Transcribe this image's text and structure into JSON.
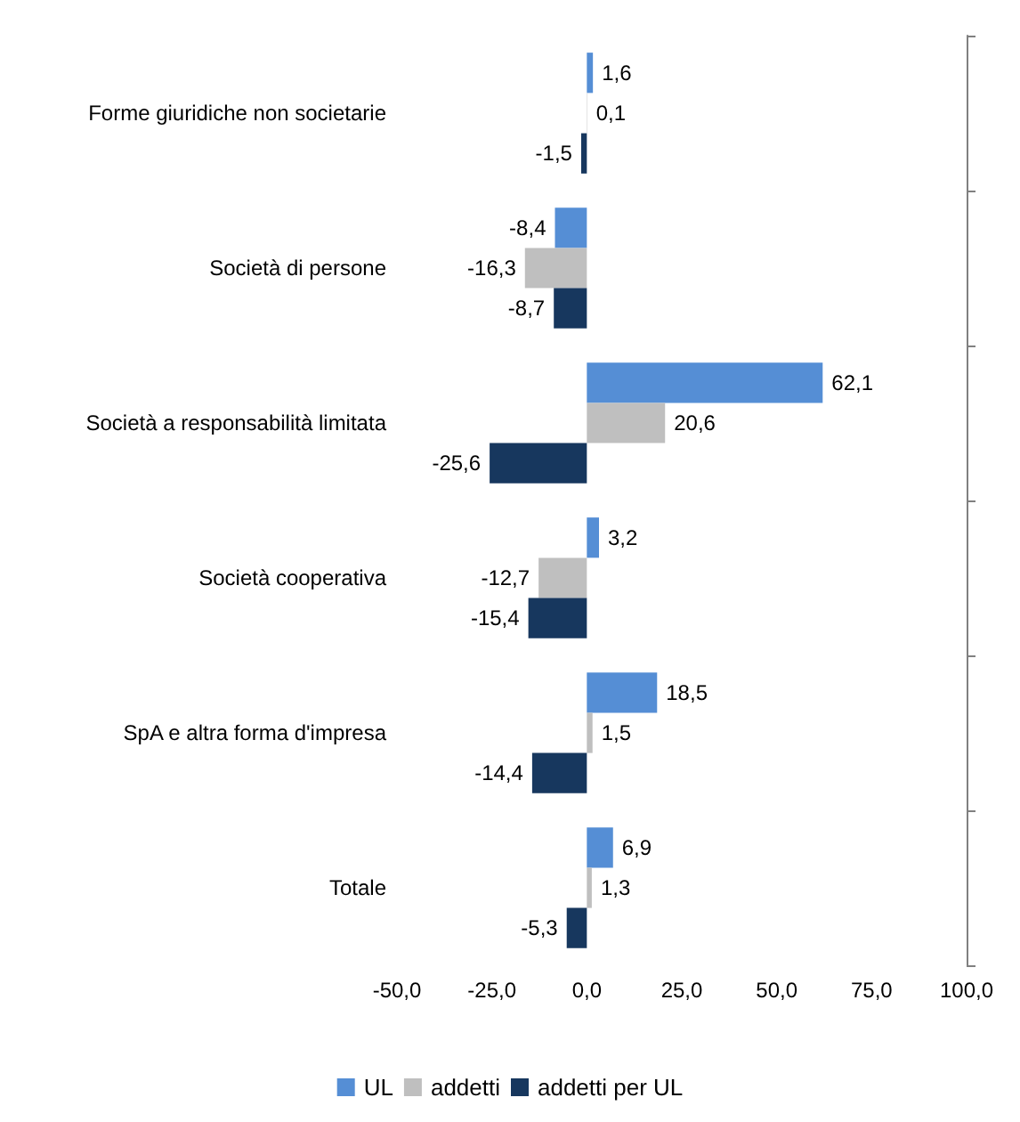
{
  "chart_data": {
    "type": "bar",
    "orientation": "horizontal",
    "categories": [
      "Forme giuridiche non societarie",
      "Società di persone",
      "Società a responsabilità limitata",
      "Società cooperativa",
      "SpA e altra forma d'impresa",
      "Totale"
    ],
    "series": [
      {
        "name": "UL",
        "color": "#558ed5",
        "values": [
          1.6,
          -8.4,
          62.1,
          3.2,
          18.5,
          6.9
        ],
        "value_labels": [
          "1,6",
          "-8,4",
          "62,1",
          "3,2",
          "18,5",
          "6,9"
        ]
      },
      {
        "name": "addetti",
        "color": "#bfbfbf",
        "values": [
          0.1,
          -16.3,
          20.6,
          -12.7,
          1.5,
          1.3
        ],
        "value_labels": [
          "0,1",
          "-16,3",
          "20,6",
          "-12,7",
          "1,5",
          "1,3"
        ]
      },
      {
        "name": "addetti per UL",
        "color": "#17375e",
        "values": [
          -1.5,
          -8.7,
          -25.6,
          -15.4,
          -14.4,
          -5.3
        ],
        "value_labels": [
          "-1,5",
          "-8,7",
          "-25,6",
          "-15,4",
          "-14,4",
          "-5,3"
        ]
      }
    ],
    "xlim": [
      -50,
      100
    ],
    "xticks": [
      {
        "value": -50,
        "label": "-50,0"
      },
      {
        "value": -25,
        "label": "-25,0"
      },
      {
        "value": 0,
        "label": "0,0"
      },
      {
        "value": 25,
        "label": "25,0"
      },
      {
        "value": 50,
        "label": "50,0"
      },
      {
        "value": 75,
        "label": "75,0"
      },
      {
        "value": 100,
        "label": "100,0"
      }
    ],
    "grid": false,
    "legend": "bottom"
  }
}
